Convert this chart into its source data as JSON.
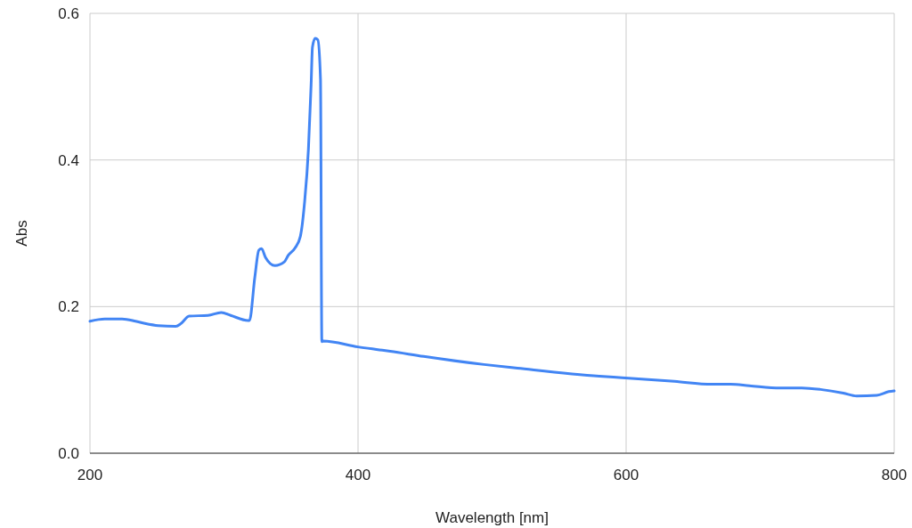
{
  "chart_data": {
    "type": "line",
    "xlabel": "Wavelength [nm]",
    "ylabel": "Abs",
    "xlim": [
      200,
      800
    ],
    "ylim": [
      0,
      0.6
    ],
    "xticks": [
      200,
      400,
      600,
      800
    ],
    "yticks": [
      {
        "value": 0,
        "label": "0.0"
      },
      {
        "value": 0.2,
        "label": "0.2"
      },
      {
        "value": 0.4,
        "label": "0.4"
      },
      {
        "value": 0.6,
        "label": "0.6"
      }
    ],
    "grid": true,
    "series": [
      {
        "color": "#4285f4",
        "x": [
          200,
          211,
          224,
          234,
          241,
          251,
          264,
          268,
          274,
          288,
          298,
          305,
          318,
          319,
          323,
          326,
          328,
          331,
          338,
          345,
          348,
          353,
          357,
          360,
          363,
          365,
          366,
          368,
          370,
          372,
          373,
          374,
          400,
          416,
          424,
          449,
          494,
          519,
          580,
          597,
          636,
          664,
          678,
          692,
          715,
          731,
          745,
          762,
          772,
          787,
          796,
          800
        ],
        "values": [
          0.18,
          0.183,
          0.183,
          0.18,
          0.177,
          0.174,
          0.173,
          0.177,
          0.187,
          0.188,
          0.192,
          0.188,
          0.181,
          0.181,
          0.24,
          0.277,
          0.279,
          0.267,
          0.256,
          0.261,
          0.27,
          0.28,
          0.296,
          0.34,
          0.415,
          0.503,
          0.554,
          0.566,
          0.564,
          0.51,
          0.152,
          0.153,
          0.145,
          0.141,
          0.139,
          0.132,
          0.121,
          0.116,
          0.105,
          0.103,
          0.098,
          0.094,
          0.094,
          0.092,
          0.089,
          0.089,
          0.087,
          0.082,
          0.078,
          0.079,
          0.084,
          0.085
        ]
      }
    ]
  }
}
